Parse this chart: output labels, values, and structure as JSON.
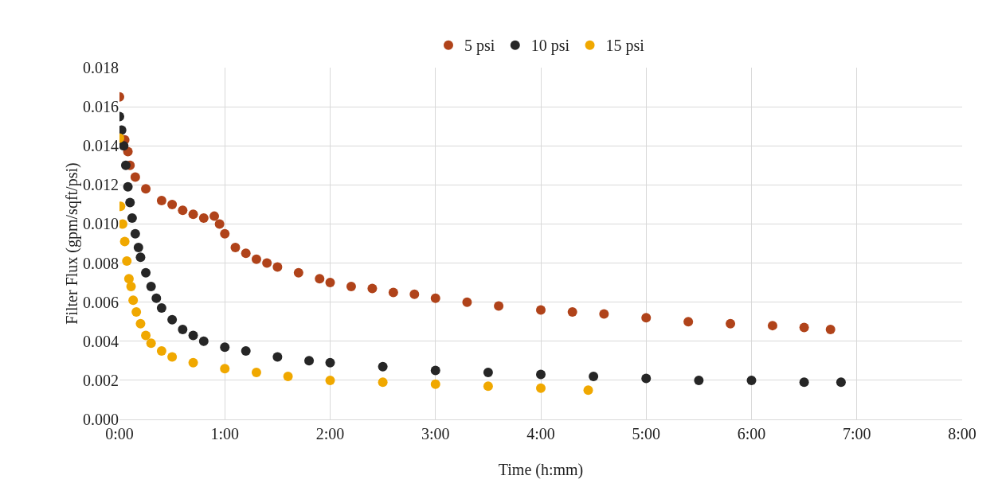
{
  "chart_data": {
    "type": "scatter",
    "xlabel": "Time (h:mm)",
    "ylabel": "Filter Flux (gpm/sqft/psi)",
    "marker": "circle",
    "grid": true,
    "legend": "top",
    "xlim": [
      0,
      8
    ],
    "xticks": [
      {
        "value": 0,
        "label": "0:00"
      },
      {
        "value": 1,
        "label": "1:00"
      },
      {
        "value": 2,
        "label": "2:00"
      },
      {
        "value": 3,
        "label": "3:00"
      },
      {
        "value": 4,
        "label": "4:00"
      },
      {
        "value": 5,
        "label": "5:00"
      },
      {
        "value": 6,
        "label": "6:00"
      },
      {
        "value": 7,
        "label": "7:00"
      },
      {
        "value": 8,
        "label": "8:00"
      }
    ],
    "ylim": [
      0,
      0.018
    ],
    "yticks": [
      {
        "value": 0,
        "label": "0.000"
      },
      {
        "value": 0.002,
        "label": "0.002"
      },
      {
        "value": 0.004,
        "label": "0.004"
      },
      {
        "value": 0.006,
        "label": "0.006"
      },
      {
        "value": 0.008,
        "label": "0.008"
      },
      {
        "value": 0.01,
        "label": "0.010"
      },
      {
        "value": 0.012,
        "label": "0.012"
      },
      {
        "value": 0.014,
        "label": "0.014"
      },
      {
        "value": 0.016,
        "label": "0.016"
      },
      {
        "value": 0.018,
        "label": "0.018"
      }
    ],
    "series": [
      {
        "name": "5 psi",
        "color": "#b0431a",
        "x": [
          0,
          0.05,
          0.08,
          0.1,
          0.15,
          0.25,
          0.4,
          0.5,
          0.6,
          0.7,
          0.8,
          0.9,
          0.95,
          1.0,
          1.1,
          1.2,
          1.3,
          1.4,
          1.5,
          1.7,
          1.9,
          2.0,
          2.2,
          2.4,
          2.6,
          2.8,
          3.0,
          3.3,
          3.6,
          4.0,
          4.3,
          4.6,
          5.0,
          5.4,
          5.8,
          6.2,
          6.5,
          6.75
        ],
        "values": [
          0.0165,
          0.0143,
          0.0137,
          0.013,
          0.0124,
          0.0118,
          0.0112,
          0.011,
          0.0107,
          0.0105,
          0.0103,
          0.0104,
          0.01,
          0.0095,
          0.0088,
          0.0085,
          0.0082,
          0.008,
          0.0078,
          0.0075,
          0.0072,
          0.007,
          0.0068,
          0.0067,
          0.0065,
          0.0064,
          0.0062,
          0.006,
          0.0058,
          0.0056,
          0.0055,
          0.0054,
          0.0052,
          0.005,
          0.0049,
          0.0048,
          0.0047,
          0.0046
        ]
      },
      {
        "name": "10 psi",
        "color": "#262626",
        "x": [
          0,
          0.02,
          0.04,
          0.06,
          0.08,
          0.1,
          0.12,
          0.15,
          0.18,
          0.2,
          0.25,
          0.3,
          0.35,
          0.4,
          0.5,
          0.6,
          0.7,
          0.8,
          1.0,
          1.2,
          1.5,
          1.8,
          2.0,
          2.5,
          3.0,
          3.5,
          4.0,
          4.5,
          5.0,
          5.5,
          6.0,
          6.5,
          6.85
        ],
        "values": [
          0.0155,
          0.0148,
          0.014,
          0.013,
          0.0119,
          0.0111,
          0.0103,
          0.0095,
          0.0088,
          0.0083,
          0.0075,
          0.0068,
          0.0062,
          0.0057,
          0.0051,
          0.0046,
          0.0043,
          0.004,
          0.0037,
          0.0035,
          0.0032,
          0.003,
          0.0029,
          0.0027,
          0.0025,
          0.0024,
          0.0023,
          0.0022,
          0.0021,
          0.002,
          0.002,
          0.0019,
          0.0019
        ]
      },
      {
        "name": "15 psi",
        "color": "#f0a800",
        "x": [
          0,
          0.01,
          0.03,
          0.05,
          0.07,
          0.09,
          0.11,
          0.13,
          0.16,
          0.2,
          0.25,
          0.3,
          0.4,
          0.5,
          0.7,
          1.0,
          1.3,
          1.6,
          2.0,
          2.5,
          3.0,
          3.5,
          4.0,
          4.45
        ],
        "values": [
          0.0144,
          0.0109,
          0.01,
          0.0091,
          0.0081,
          0.0072,
          0.0068,
          0.0061,
          0.0055,
          0.0049,
          0.0043,
          0.0039,
          0.0035,
          0.0032,
          0.0029,
          0.0026,
          0.0024,
          0.0022,
          0.002,
          0.0019,
          0.0018,
          0.0017,
          0.0016,
          0.0015
        ]
      }
    ]
  }
}
